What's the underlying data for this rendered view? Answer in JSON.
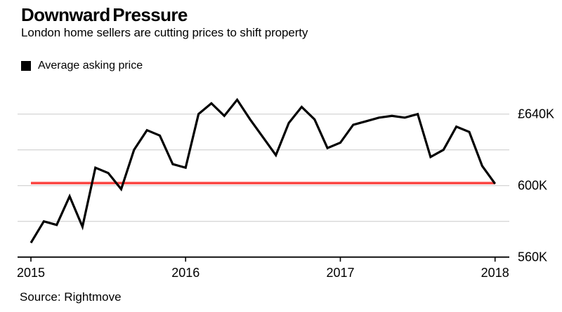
{
  "header": {
    "title": "Downward Pressure",
    "subtitle": "London home sellers are cutting prices to shift property"
  },
  "legend": {
    "label": "Average asking price",
    "swatch_color": "#000000"
  },
  "footer": {
    "source": "Source: Rightmove"
  },
  "colors": {
    "line": "#000000",
    "reference_line": "#fb4340",
    "gridline": "#d8d8d8",
    "axis": "#000000",
    "text": "#000000",
    "background": "#ffffff"
  },
  "chart_data": {
    "type": "line",
    "title": "Downward Pressure",
    "subtitle": "London home sellers are cutting prices to shift property",
    "unit": "GBP thousands",
    "frequency": "monthly",
    "x_first": "2015-01",
    "x_last": "2018-01",
    "series": [
      {
        "name": "Average asking price",
        "values": [
          568,
          580,
          578,
          594,
          577,
          610,
          607,
          598,
          620,
          631,
          628,
          612,
          610,
          640,
          646,
          639,
          648,
          637,
          627,
          617,
          635,
          644,
          637,
          621,
          624,
          634,
          636,
          638,
          639,
          638,
          640,
          616,
          620,
          633,
          630,
          611,
          601
        ]
      }
    ],
    "reference_line": {
      "value": 601.4,
      "color": "#fb4340"
    },
    "y_axis": {
      "side": "right",
      "tick_labels": [
        "£640K",
        "600K",
        "560K"
      ],
      "tick_values": [
        640,
        600,
        560
      ],
      "gridline_values": [
        640,
        620,
        600,
        580
      ],
      "baseline_value": 560,
      "ylim": [
        560,
        653
      ],
      "grid": true
    },
    "x_axis": {
      "tick_labels": [
        "2015",
        "2016",
        "2017",
        "2018"
      ],
      "tick_month_indices": [
        0,
        12,
        24,
        36
      ]
    }
  }
}
